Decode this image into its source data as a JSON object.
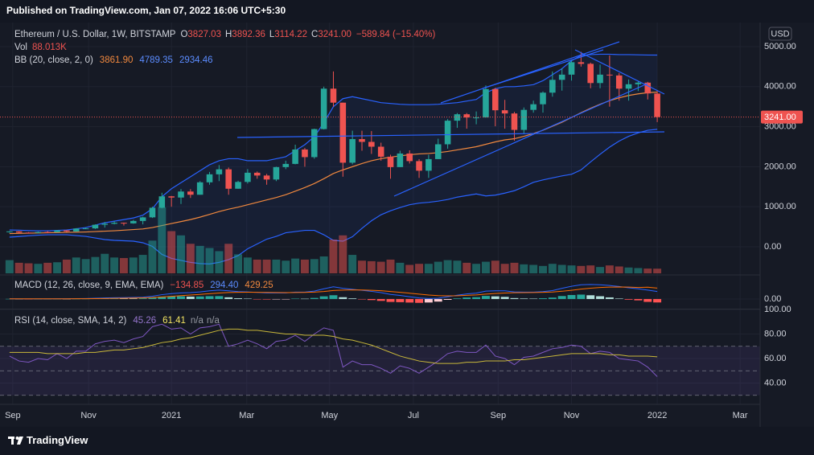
{
  "header": {
    "published": "Published on TradingView.com, Jan 07, 2022 16:06 UTC+5:30",
    "footer": "TradingView"
  },
  "x_axis": {
    "xlim": [
      -1,
      78.8
    ],
    "grid": true,
    "xticks": [
      {
        "value": 0.34,
        "label": "Sep"
      },
      {
        "value": 8.3,
        "label": "Nov"
      },
      {
        "value": 17.0,
        "label": "2021"
      },
      {
        "value": 24.9,
        "label": "Mar"
      },
      {
        "value": 33.6,
        "label": "May"
      },
      {
        "value": 42.4,
        "label": "Jul"
      },
      {
        "value": 51.3,
        "label": "Sep"
      },
      {
        "value": 59.0,
        "label": "Nov"
      },
      {
        "value": 68.0,
        "label": "2022"
      },
      {
        "value": 76.7,
        "label": "Mar"
      }
    ]
  },
  "chart_data": [
    {
      "type": "candlestick",
      "title": "Ethereum / U.S. Dollar, 1W, BITSTAMP",
      "ohlc_legend": [
        {
          "label": "O",
          "value": "3827.03"
        },
        {
          "label": "H",
          "value": "3892.36"
        },
        {
          "label": "L",
          "value": "3114.22"
        },
        {
          "label": "C",
          "value": "3241.00"
        }
      ],
      "change": "−589.84 (−15.40%)",
      "up_color": "#26a69a",
      "down_color": "#ef5350",
      "open": [
        365,
        385,
        355,
        352,
        368,
        366,
        408,
        383,
        455,
        460,
        550,
        575,
        600,
        585,
        645,
        735,
        975,
        1260,
        1230,
        1380,
        1300,
        1610,
        1810,
        1935,
        1450,
        1620,
        1850,
        1780,
        1680,
        1990,
        2070,
        2430,
        2240,
        2940,
        3950,
        3600,
        2100,
        2690,
        2620,
        2500,
        2250,
        1990,
        2330,
        2140,
        1900,
        2190,
        2560,
        3150,
        3310,
        3230,
        3230,
        3940,
        3410,
        3330,
        2920,
        3420,
        3560,
        3850,
        4170,
        4300,
        4610,
        4570,
        4090,
        4300,
        4280,
        3950,
        4060,
        4100,
        3827.03
      ],
      "high": [
        390,
        390,
        365,
        380,
        392,
        420,
        415,
        465,
        480,
        560,
        620,
        635,
        605,
        670,
        750,
        1000,
        1350,
        1270,
        1440,
        1440,
        1640,
        1870,
        2040,
        1980,
        1650,
        1940,
        1880,
        1820,
        2000,
        2150,
        2550,
        2470,
        2950,
        4000,
        4380,
        3600,
        2900,
        2900,
        2890,
        2600,
        2300,
        2400,
        2410,
        2190,
        2300,
        2700,
        3190,
        3340,
        3340,
        3380,
        4030,
        3970,
        3670,
        3370,
        3480,
        3650,
        3880,
        4380,
        4460,
        4680,
        4870,
        4600,
        4550,
        4780,
        4340,
        4180,
        4130,
        4120,
        3892.36
      ],
      "low": [
        350,
        330,
        335,
        335,
        360,
        360,
        370,
        375,
        440,
        445,
        480,
        560,
        530,
        575,
        560,
        720,
        960,
        1000,
        1070,
        1220,
        1300,
        1550,
        1640,
        1300,
        1450,
        1580,
        1700,
        1550,
        1640,
        1940,
        2060,
        2000,
        2200,
        2930,
        3500,
        1750,
        2060,
        2400,
        2320,
        2150,
        1700,
        1990,
        2080,
        1720,
        1720,
        2190,
        2450,
        2970,
        2950,
        3060,
        3230,
        3010,
        2950,
        2650,
        2820,
        3350,
        3350,
        3750,
        3900,
        4150,
        4500,
        3960,
        3960,
        3500,
        3650,
        3650,
        3890,
        3680,
        3114.22
      ],
      "close": [
        385,
        355,
        352,
        368,
        366,
        408,
        383,
        455,
        460,
        550,
        575,
        600,
        585,
        645,
        735,
        975,
        1260,
        1230,
        1380,
        1300,
        1610,
        1810,
        1935,
        1450,
        1620,
        1850,
        1780,
        1680,
        1990,
        2070,
        2430,
        2240,
        2940,
        3950,
        3600,
        2100,
        2690,
        2620,
        2500,
        2250,
        1990,
        2330,
        2140,
        1900,
        2190,
        2560,
        3150,
        3310,
        3230,
        3230,
        3940,
        3410,
        3330,
        2920,
        3420,
        3560,
        3850,
        4170,
        4300,
        4610,
        4570,
        4090,
        4300,
        4280,
        3950,
        4060,
        4100,
        3830.84,
        3241
      ],
      "volume": {
        "label": "Vol",
        "legend_value": "88.013K",
        "values": [
          250,
          200,
          190,
          180,
          200,
          210,
          260,
          300,
          270,
          310,
          370,
          300,
          290,
          300,
          350,
          620,
          1250,
          800,
          720,
          560,
          520,
          480,
          420,
          560,
          360,
          300,
          260,
          260,
          260,
          240,
          280,
          260,
          270,
          320,
          640,
          720,
          350,
          240,
          230,
          220,
          260,
          200,
          160,
          180,
          180,
          220,
          250,
          240,
          200,
          180,
          220,
          240,
          180,
          200,
          170,
          160,
          140,
          180,
          160,
          150,
          140,
          150,
          120,
          150,
          130,
          110,
          100,
          90,
          88.013
        ]
      },
      "bb": {
        "label": "BB (20, close, 2, 0)",
        "fill": "rgba(41,98,255,0.07)",
        "series": [
          {
            "color": "#f0883e",
            "legend_value": "3861.90",
            "values": [
              330,
              335,
              340,
              345,
              350,
              355,
              360,
              365,
              370,
              380,
              390,
              400,
              415,
              430,
              445,
              480,
              530,
              580,
              630,
              680,
              740,
              810,
              880,
              940,
              990,
              1050,
              1110,
              1170,
              1230,
              1300,
              1390,
              1480,
              1580,
              1700,
              1830,
              1920,
              2000,
              2080,
              2150,
              2200,
              2240,
              2270,
              2300,
              2320,
              2330,
              2350,
              2380,
              2420,
              2460,
              2500,
              2560,
              2620,
              2670,
              2700,
              2760,
              2830,
              2910,
              3010,
              3110,
              3230,
              3350,
              3460,
              3560,
              3650,
              3720,
              3780,
              3820,
              3850,
              3861.9
            ]
          },
          {
            "color": "#2962ff",
            "legend_value": "4789.35",
            "values": [
              420,
              415,
              405,
              400,
              400,
              410,
              420,
              450,
              480,
              540,
              600,
              640,
              680,
              720,
              790,
              950,
              1250,
              1450,
              1600,
              1750,
              1900,
              2050,
              2150,
              2200,
              2200,
              2150,
              2150,
              2150,
              2200,
              2250,
              2400,
              2550,
              2750,
              3100,
              3500,
              3700,
              3750,
              3700,
              3650,
              3600,
              3580,
              3560,
              3550,
              3550,
              3550,
              3560,
              3580,
              3600,
              3640,
              3680,
              3850,
              3950,
              4000,
              4000,
              4020,
              4050,
              4150,
              4300,
              4450,
              4650,
              4780,
              4800,
              4810,
              4810,
              4800,
              4800,
              4795,
              4790,
              4789.35
            ]
          },
          {
            "color": "#2962ff",
            "legend_value": "2934.46",
            "values": [
              240,
              255,
              275,
              290,
              300,
              300,
              300,
              280,
              260,
              220,
              180,
              160,
              150,
              140,
              100,
              10,
              -190,
              -290,
              -340,
              -390,
              -420,
              -430,
              -390,
              -320,
              -220,
              -50,
              70,
              190,
              260,
              350,
              380,
              410,
              410,
              300,
              160,
              140,
              250,
              460,
              650,
              800,
              900,
              980,
              1050,
              1090,
              1110,
              1140,
              1180,
              1240,
              1280,
              1320,
              1270,
              1290,
              1340,
              1400,
              1500,
              1610,
              1670,
              1720,
              1770,
              1810,
              1920,
              2120,
              2310,
              2490,
              2640,
              2760,
              2845,
              2910,
              2934.46
            ]
          }
        ]
      },
      "last_price_label": "3241.00",
      "unit": "USD",
      "ylim": [
        -663,
        5562
      ],
      "yticks": [
        {
          "value": 0,
          "label": "0.00"
        },
        {
          "value": 1000,
          "label": "1000.00"
        },
        {
          "value": 2000,
          "label": "2000.00"
        },
        {
          "value": 3000,
          "label": "3000.00"
        },
        {
          "value": 4000,
          "label": "4000.00"
        },
        {
          "value": 5000,
          "label": "5000.00"
        }
      ]
    },
    {
      "type": "macd",
      "title": "MACD (12, 26, close, 9, EMA, EMA)",
      "legend_values": [
        "−134.85",
        "294.40",
        "429.25"
      ],
      "hist_colors": [
        "#26a69a",
        "#b2dfdb",
        "#ffcdd2",
        "#ff5252"
      ],
      "histogram": [
        5,
        2,
        -1,
        0,
        0,
        3,
        2,
        6,
        9,
        15,
        20,
        24,
        23,
        22,
        26,
        53,
        90,
        104,
        107,
        94,
        99,
        111,
        113,
        66,
        29,
        15,
        -4,
        -19,
        -15,
        -12,
        14,
        11,
        41,
        105,
        148,
        70,
        24,
        -13,
        -42,
        -74,
        -115,
        -124,
        -139,
        -151,
        -137,
        -102,
        -33,
        22,
        57,
        70,
        120,
        104,
        83,
        35,
        20,
        16,
        29,
        55,
        116,
        157,
        173,
        147,
        109,
        63,
        18,
        -26,
        -53,
        -113,
        -134.85
      ],
      "series": [
        {
          "color": "#2962ff",
          "values": [
            10,
            8,
            5,
            6,
            6,
            10,
            10,
            15,
            20,
            30,
            40,
            50,
            55,
            60,
            70,
            110,
            170,
            210,
            240,
            250,
            280,
            320,
            350,
            320,
            290,
            280,
            260,
            240,
            240,
            240,
            270,
            270,
            310,
            400,
            480,
            420,
            380,
            340,
            300,
            250,
            180,
            140,
            90,
            40,
            20,
            30,
            90,
            150,
            200,
            230,
            310,
            320,
            320,
            280,
            270,
            270,
            290,
            330,
            420,
            500,
            560,
            570,
            560,
            530,
            490,
            440,
            400,
            350,
            294.4
          ]
        },
        {
          "color": "#ff6d00",
          "values": [
            5,
            6,
            6,
            6,
            6,
            7,
            8,
            9,
            11,
            15,
            20,
            26,
            32,
            38,
            44,
            57,
            80,
            106,
            133,
            156,
            181,
            209,
            237,
            254,
            261,
            265,
            264,
            259,
            255,
            252,
            256,
            259,
            269,
            295,
            332,
            350,
            356,
            353,
            342,
            324,
            295,
            264,
            229,
            191,
            157,
            132,
            123,
            128,
            143,
            160,
            190,
            216,
            237,
            245,
            250,
            254,
            261,
            275,
            304,
            343,
            387,
            423,
            451,
            467,
            472,
            466,
            453,
            463,
            429.25
          ]
        }
      ],
      "ylim": [
        -380,
        850
      ],
      "yticks": [
        {
          "value": 0,
          "label": "0.00"
        }
      ]
    },
    {
      "type": "line",
      "title": "RSI (14, close, SMA, 14, 2)",
      "legend_values": [
        "45.26",
        "61.41",
        "n/a",
        "n/a"
      ],
      "levels": [
        70,
        50,
        30
      ],
      "band_fill": "rgba(126,87,194,0.12)",
      "series": [
        {
          "color": "#7e57c2",
          "values": [
            62,
            58,
            57,
            60,
            59,
            64,
            60,
            66,
            66,
            72,
            74,
            75,
            73,
            76,
            78,
            86,
            88,
            84,
            85,
            80,
            85,
            86,
            88,
            70,
            72,
            75,
            72,
            68,
            74,
            75,
            79,
            74,
            80,
            85,
            83,
            53,
            58,
            55,
            55,
            52,
            48,
            54,
            52,
            48,
            53,
            58,
            64,
            66,
            65,
            65,
            71,
            62,
            60,
            55,
            61,
            62,
            65,
            68,
            69,
            71,
            70,
            64,
            66,
            65,
            60,
            59,
            58,
            53,
            45.26
          ]
        },
        {
          "color": "#c9b83a",
          "values": [
            65,
            65,
            65,
            65,
            64,
            64,
            64,
            64,
            65,
            65,
            66,
            67,
            67,
            68,
            69,
            71,
            73,
            74,
            76,
            77,
            79,
            81,
            83,
            84,
            84,
            83,
            83,
            82,
            81,
            80,
            80,
            79,
            79,
            79,
            78,
            76,
            75,
            73,
            71,
            68,
            65,
            62,
            60,
            58,
            57,
            56,
            56,
            56,
            57,
            57,
            58,
            58,
            58,
            59,
            59,
            60,
            61,
            62,
            63,
            64,
            64,
            64,
            64,
            63,
            63,
            62,
            62,
            62,
            61.41
          ]
        }
      ],
      "ylim": [
        24.6,
        100
      ],
      "yticks": [
        {
          "value": 40,
          "label": "40.00"
        },
        {
          "value": 60,
          "label": "60.00"
        },
        {
          "value": 80,
          "label": "80.00"
        },
        {
          "value": 100,
          "label": "100.00"
        }
      ]
    }
  ]
}
